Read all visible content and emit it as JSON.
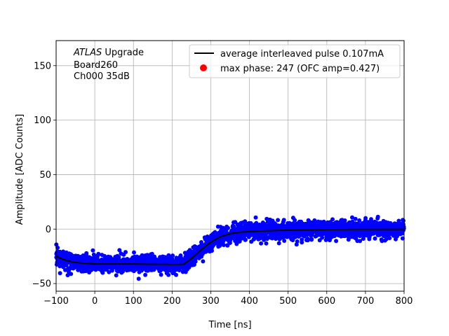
{
  "chart_data": {
    "type": "scatter",
    "xlabel": "Time [ns]",
    "ylabel": "Amplitude [ADC Counts]",
    "xlim": [
      -100,
      800
    ],
    "ylim": [
      -57,
      173
    ],
    "x_ticks": [
      -100,
      0,
      100,
      200,
      300,
      400,
      500,
      600,
      700,
      800
    ],
    "x_tick_labels": [
      "−100",
      "0",
      "100",
      "200",
      "300",
      "400",
      "500",
      "600",
      "700",
      "800"
    ],
    "y_ticks": [
      -50,
      0,
      50,
      100,
      150
    ],
    "y_tick_labels": [
      "−50",
      "0",
      "50",
      "100",
      "150"
    ],
    "grid": true,
    "legend_placement": "top-right",
    "annotation": {
      "atlas": "ATLAS",
      "upgrade": " Upgrade",
      "board": " Board260",
      "channel": " Ch000 35dB"
    },
    "series": [
      {
        "name": "average interleaved pulse 0.107mA",
        "kind": "line",
        "color": "#000000",
        "x": [
          -100,
          -80,
          -60,
          -40,
          -20,
          0,
          50,
          100,
          150,
          200,
          230,
          250,
          275,
          300,
          325,
          350,
          375,
          400,
          450,
          500,
          600,
          700,
          800
        ],
        "y": [
          -25,
          -28,
          -30,
          -31,
          -31.5,
          -32,
          -32,
          -32,
          -32.3,
          -32.5,
          -32.3,
          -27,
          -19,
          -12,
          -7,
          -4.2,
          -3,
          -2.2,
          -1.5,
          -1,
          -0.5,
          -0.3,
          -0.2
        ]
      },
      {
        "name": "interleaved samples",
        "kind": "scatter",
        "color": "#0000ff",
        "noise_sigma": 4,
        "x_range": [
          -100,
          800
        ]
      },
      {
        "name": "max phase: 247 (OFC amp=0.427)",
        "kind": "marker",
        "color": "#ff0000"
      }
    ]
  }
}
